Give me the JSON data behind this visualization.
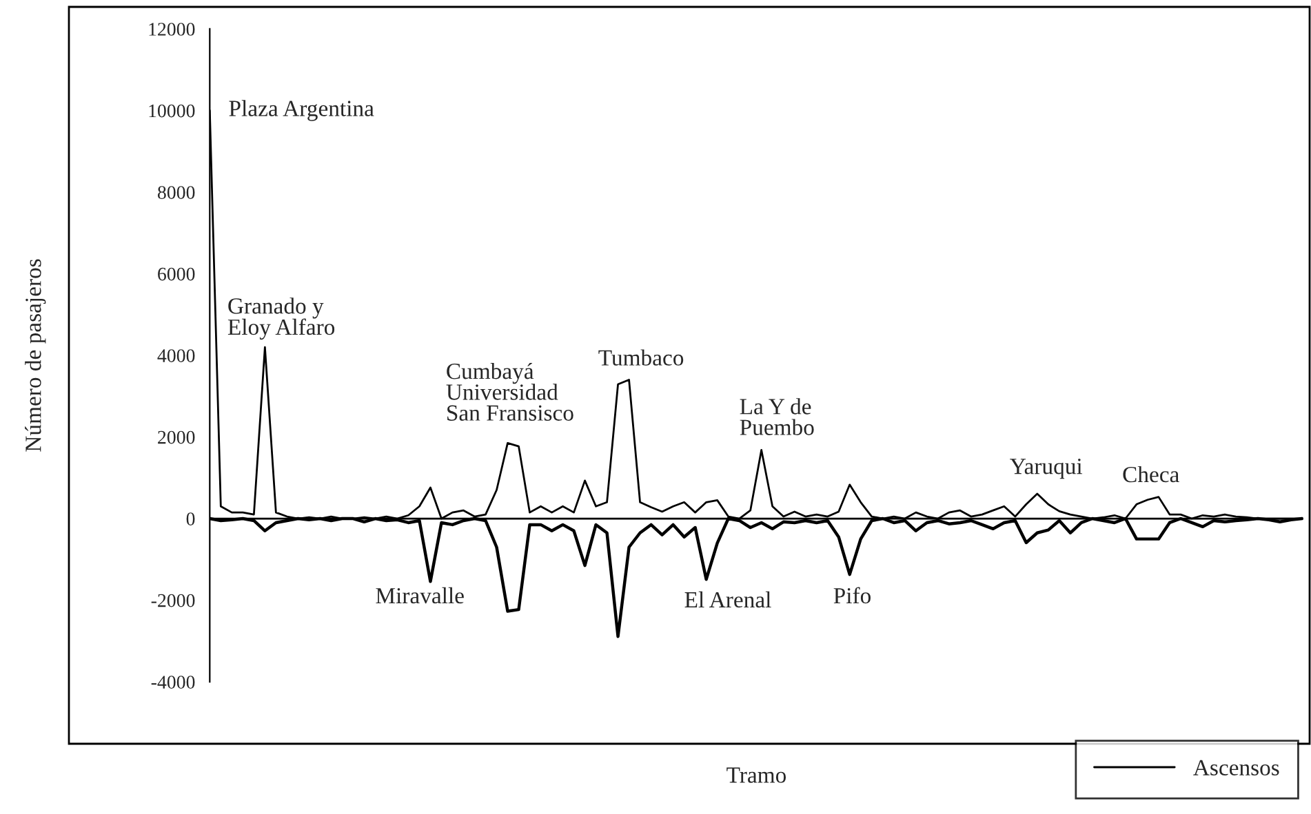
{
  "chart_data": {
    "type": "line",
    "xlabel": "Tramo",
    "ylabel": "Número de pasajeros",
    "categories": [
      null,
      null,
      null,
      null,
      null,
      null,
      null,
      null,
      null,
      null,
      null,
      null,
      null,
      null,
      null,
      null,
      null,
      null,
      null,
      null,
      null,
      null,
      null,
      null,
      null,
      null,
      null,
      null,
      null,
      null,
      null,
      null,
      null,
      null,
      null,
      null,
      null,
      null,
      null,
      null,
      null,
      null,
      null,
      null,
      null,
      null,
      null,
      null,
      null,
      null,
      null,
      null,
      null,
      null,
      null,
      null,
      null,
      null,
      null,
      null,
      null,
      null,
      null,
      null,
      null,
      null,
      null,
      null,
      null,
      null,
      null,
      null,
      null,
      null,
      null,
      null,
      null,
      null,
      null,
      null,
      null,
      null,
      null,
      null,
      null,
      null,
      null,
      null,
      null,
      null,
      null,
      null,
      null,
      null,
      null,
      null,
      null,
      null,
      null,
      null
    ],
    "series": [
      {
        "name": "Ascensos",
        "color": "#000000",
        "values": [
          10000,
          300,
          150,
          150,
          100,
          4200,
          150,
          50,
          0,
          30,
          0,
          50,
          0,
          0,
          30,
          0,
          50,
          0,
          80,
          300,
          760,
          0,
          150,
          200,
          50,
          100,
          700,
          1850,
          1770,
          150,
          300,
          150,
          300,
          150,
          930,
          300,
          400,
          3290,
          3400,
          400,
          280,
          170,
          300,
          400,
          150,
          400,
          450,
          50,
          0,
          200,
          1680,
          300,
          50,
          170,
          50,
          100,
          50,
          170,
          830,
          400,
          50,
          0,
          50,
          0,
          150,
          50,
          0,
          150,
          200,
          50,
          100,
          200,
          300,
          50,
          350,
          610,
          350,
          180,
          100,
          50,
          0,
          30,
          80,
          0,
          350,
          460,
          530,
          100,
          100,
          0,
          80,
          50,
          100,
          50,
          30,
          0,
          0,
          0,
          0,
          0
        ]
      },
      {
        "color": "#000000",
        "values": [
          0,
          -50,
          -30,
          0,
          -50,
          -300,
          -100,
          -50,
          0,
          -30,
          0,
          -50,
          0,
          0,
          -80,
          0,
          -50,
          -30,
          -100,
          -50,
          -1540,
          -100,
          -150,
          -50,
          0,
          -50,
          -700,
          -2270,
          -2230,
          -150,
          -150,
          -300,
          -150,
          -300,
          -1150,
          -150,
          -350,
          -2890,
          -700,
          -350,
          -150,
          -400,
          -150,
          -450,
          -220,
          -1490,
          -600,
          0,
          -50,
          -220,
          -100,
          -250,
          -80,
          -100,
          -50,
          -100,
          -50,
          -450,
          -1370,
          -500,
          -50,
          0,
          -100,
          -50,
          -300,
          -100,
          -50,
          -130,
          -100,
          -50,
          -150,
          -250,
          -100,
          -50,
          -590,
          -350,
          -280,
          -50,
          -350,
          -100,
          0,
          -50,
          -100,
          0,
          -500,
          -500,
          -500,
          -100,
          0,
          -100,
          -200,
          -50,
          -80,
          -50,
          -30,
          0,
          -30,
          -80,
          -30,
          0
        ]
      }
    ],
    "ylim": [
      -4000,
      12000
    ],
    "yticks": [
      -4000,
      -2000,
      0,
      2000,
      4000,
      6000,
      8000,
      10000,
      12000
    ],
    "grid": false,
    "ref_lines": [
      {
        "axis": "y",
        "value": 0
      }
    ],
    "legend": "bottom right",
    "marker": "none",
    "line_style": "solid",
    "annotations": [
      "Plaza Argentina",
      "Granado y\nEloy Alfaro",
      "Cumbayá\nUniversidad\nSan Fransisco",
      "Tumbaco",
      "La Y de\nPuembo",
      "Miravalle",
      "El Arenal",
      "Pifo",
      "Yaruqui",
      "Checa"
    ]
  }
}
